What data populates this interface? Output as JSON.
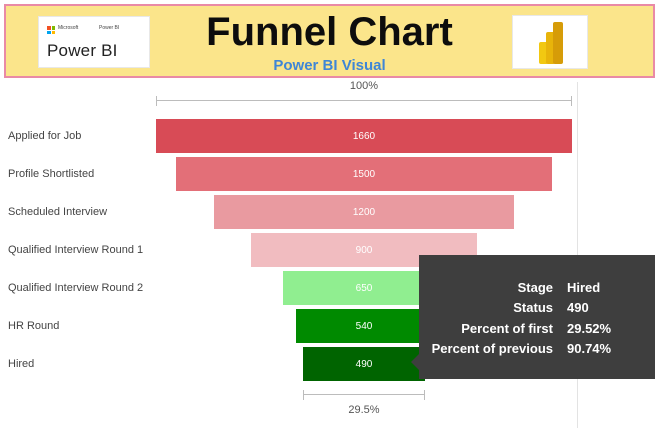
{
  "banner": {
    "title": "Funnel Chart",
    "subtitle": "Power BI Visual",
    "logo_ms_text": "Microsoft",
    "logo_pbi_small": "Power BI",
    "logo_text": "Power BI",
    "colors": {
      "background": "#fbe58b",
      "border": "#e98aa6",
      "subtitle": "#3f86d6"
    }
  },
  "chart_data": {
    "type": "funnel",
    "categories": [
      "Applied for Job",
      "Profile Shortlisted",
      "Scheduled Interview",
      "Qualified Interview Round 1",
      "Qualified Interview Round 2",
      "HR Round",
      "Hired"
    ],
    "values": [
      1660,
      1500,
      1200,
      900,
      650,
      540,
      490
    ],
    "value_labels": [
      "1660",
      "1500",
      "1200",
      "900",
      "650",
      "540",
      "490"
    ],
    "colors": [
      "#d84b56",
      "#e36f78",
      "#e99aa0",
      "#f1bcc0",
      "#90ee90",
      "#008a00",
      "#006400"
    ],
    "top_label": "100%",
    "bottom_label": "29.5%"
  },
  "tooltip": {
    "rows": [
      {
        "key": "Stage",
        "value": "Hired"
      },
      {
        "key": "Status",
        "value": "490"
      },
      {
        "key": "Percent of first",
        "value": "29.52%"
      },
      {
        "key": "Percent of previous",
        "value": "90.74%"
      }
    ]
  }
}
